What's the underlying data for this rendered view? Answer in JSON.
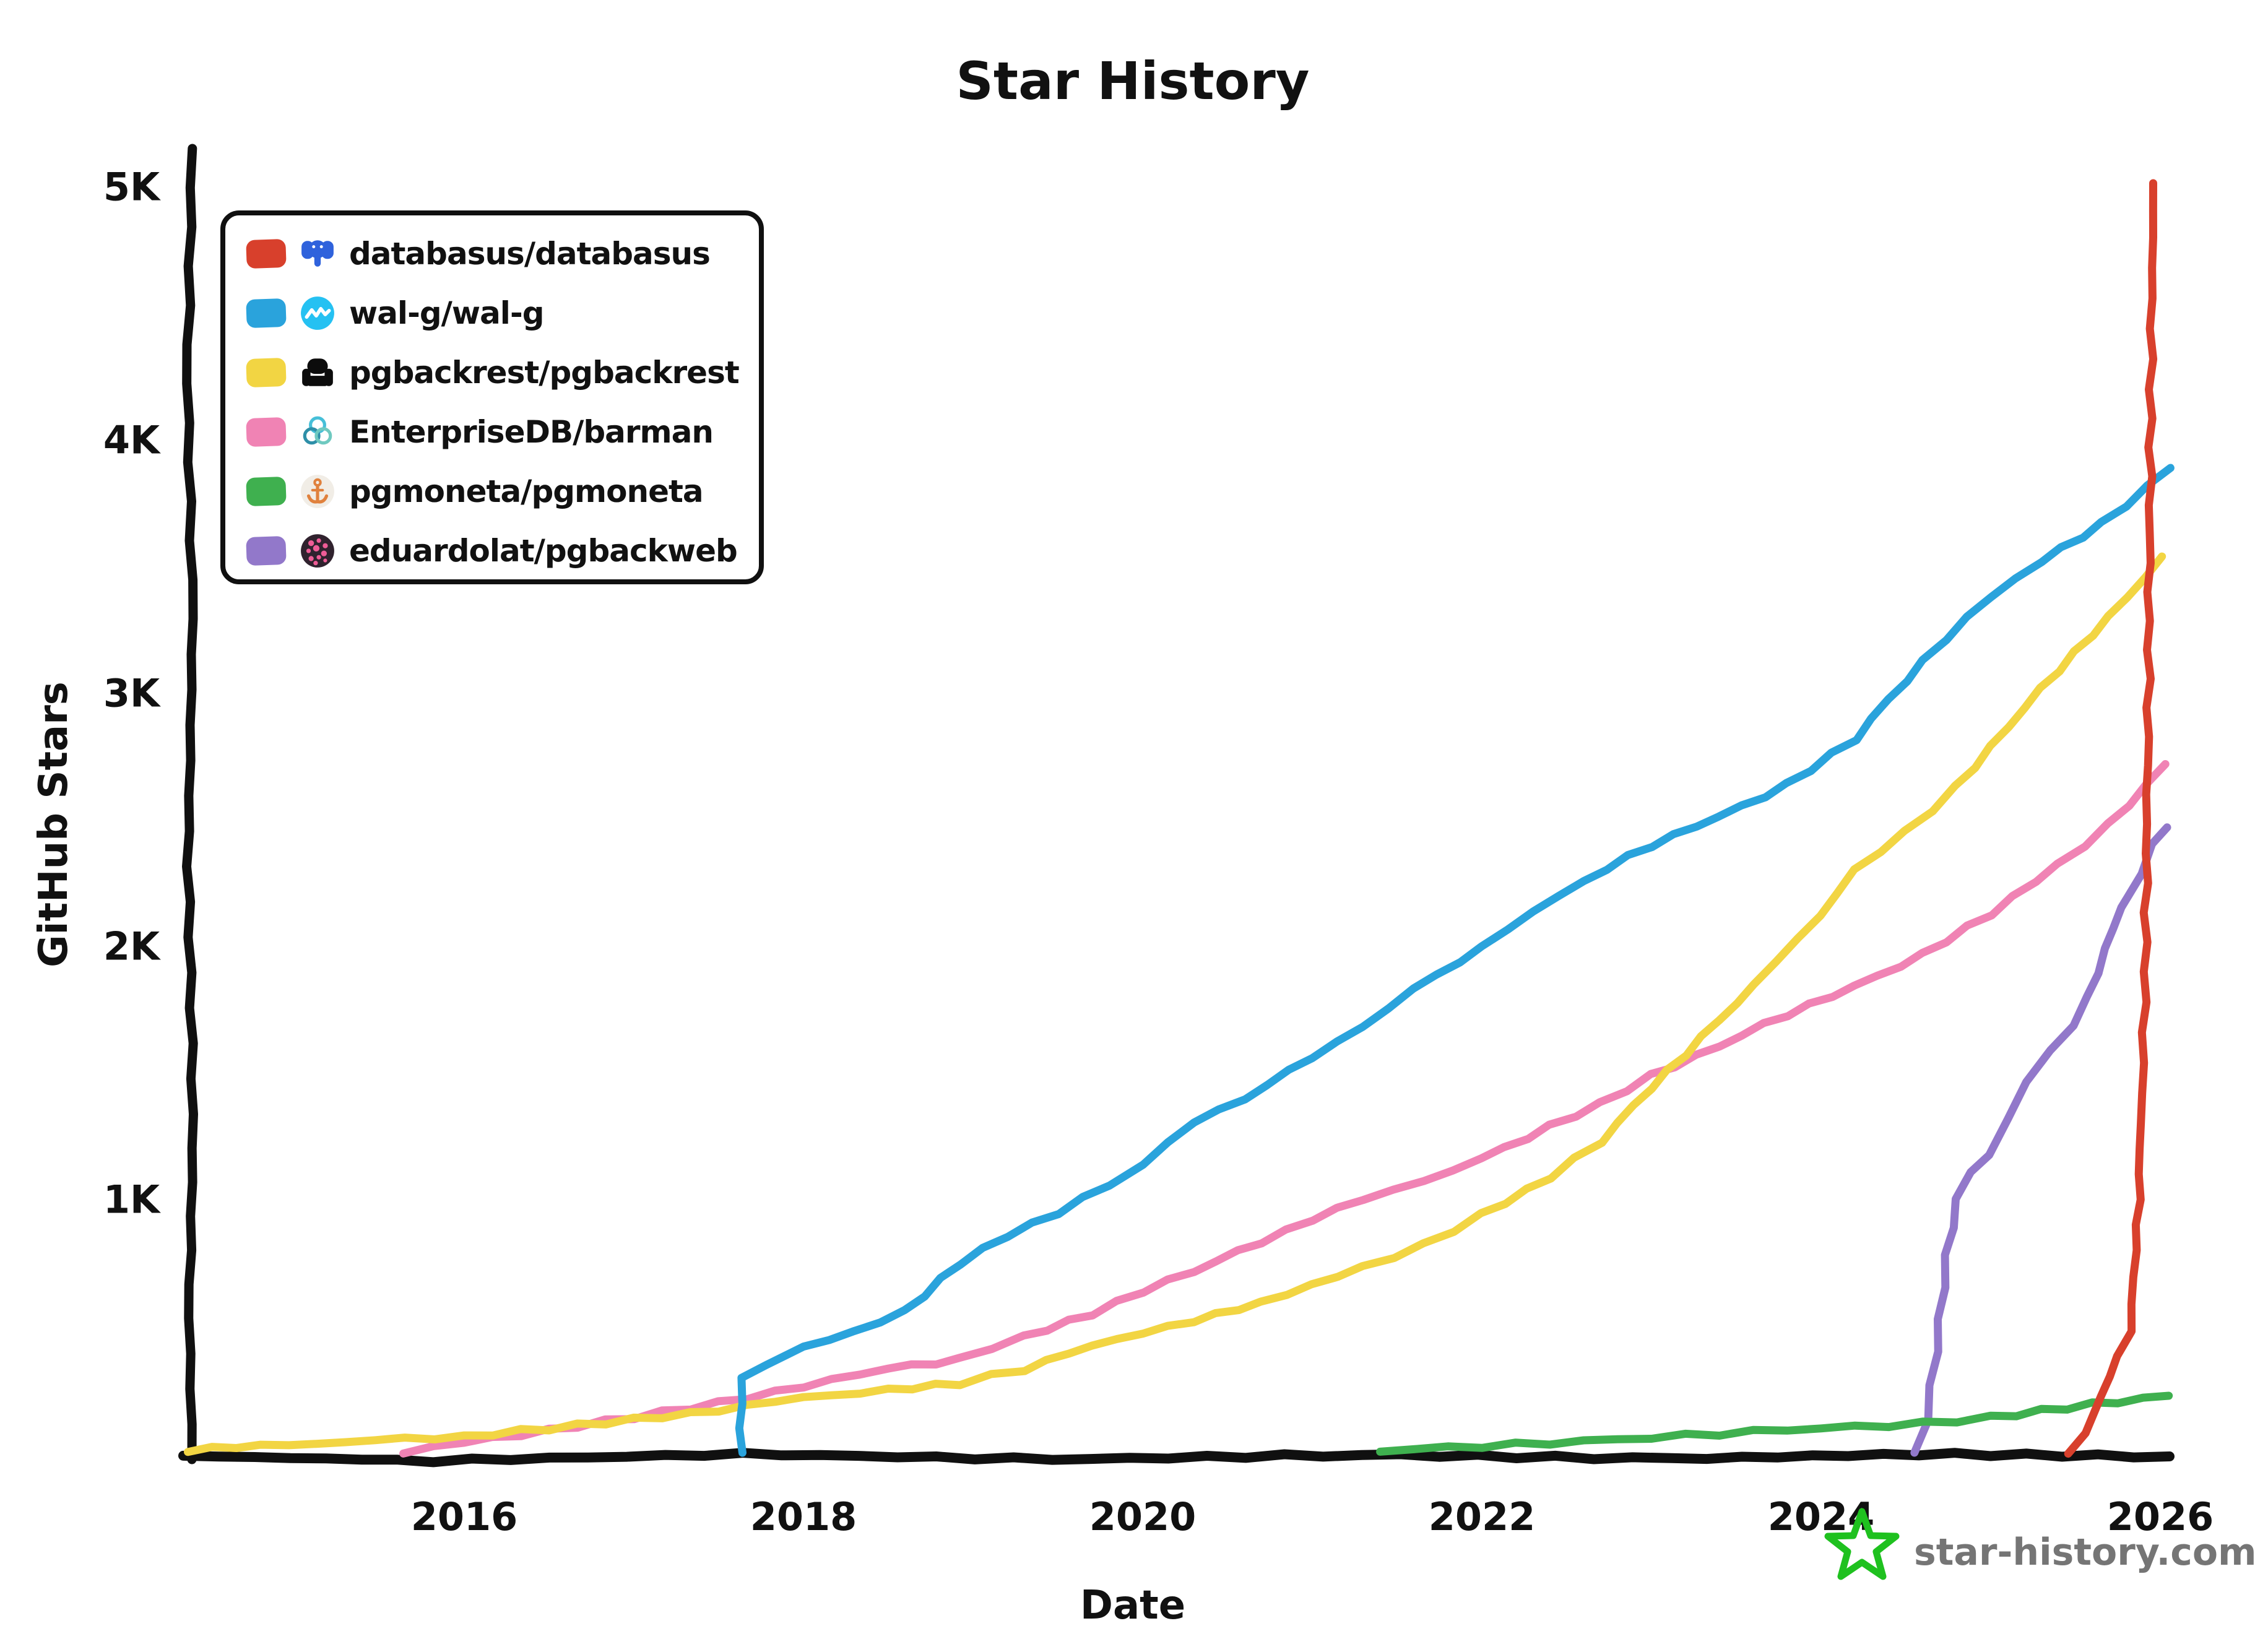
{
  "title": "Star History",
  "axis": {
    "x_label": "Date",
    "y_label": "GitHub Stars",
    "x_tick_labels": [
      "2016",
      "2018",
      "2020",
      "2022",
      "2024",
      "2026"
    ],
    "y_tick_labels": [
      "1K",
      "2K",
      "3K",
      "4K",
      "5K"
    ]
  },
  "watermark": {
    "label": "star-history.com",
    "star_color": "#1fc11f",
    "text_color": "#757575"
  },
  "legend": [
    {
      "label": "databasus/databasus",
      "color": "#D8402C",
      "icon": "postgres-elephant-icon"
    },
    {
      "label": "wal-g/wal-g",
      "color": "#2AA3DC",
      "icon": "wave-circle-icon"
    },
    {
      "label": "pgbackrest/pgbackrest",
      "color": "#F2D543",
      "icon": "armchair-icon"
    },
    {
      "label": "EnterpriseDB/barman",
      "color": "#F083B4",
      "icon": "rings-icon"
    },
    {
      "label": "pgmoneta/pgmoneta",
      "color": "#3FB04F",
      "icon": "anchor-icon"
    },
    {
      "label": "eduardolat/pgbackweb",
      "color": "#9278CA",
      "icon": "berry-icon"
    }
  ],
  "chart_data": {
    "type": "line",
    "title": "Star History",
    "xlabel": "Date",
    "ylabel": "GitHub Stars",
    "xlim": [
      2014.37,
      2026.1
    ],
    "ylim": [
      0,
      5000
    ],
    "x_ticks": [
      2016,
      2018,
      2020,
      2022,
      2024,
      2026
    ],
    "y_ticks": [
      1000,
      2000,
      3000,
      4000,
      5000
    ],
    "grid": false,
    "legend_position": "top-left",
    "style": "hand-drawn-xkcd",
    "series": [
      {
        "name": "databasus/databasus",
        "color": "#D8402C",
        "points": [
          [
            2025.45,
            0
          ],
          [
            2025.55,
            80
          ],
          [
            2025.66,
            220
          ],
          [
            2025.75,
            380
          ],
          [
            2025.82,
            480
          ],
          [
            2025.86,
            800
          ],
          [
            2025.89,
            1300
          ],
          [
            2025.91,
            1900
          ],
          [
            2025.925,
            2600
          ],
          [
            2025.935,
            3400
          ],
          [
            2025.945,
            4200
          ],
          [
            2025.952,
            4800
          ],
          [
            2025.958,
            5020
          ]
        ]
      },
      {
        "name": "wal-g/wal-g",
        "color": "#2AA3DC",
        "points": [
          [
            2017.63,
            0
          ],
          [
            2017.64,
            290
          ],
          [
            2017.78,
            350
          ],
          [
            2018.0,
            420
          ],
          [
            2018.3,
            480
          ],
          [
            2018.6,
            560
          ],
          [
            2018.92,
            750
          ],
          [
            2019.2,
            860
          ],
          [
            2019.5,
            950
          ],
          [
            2019.8,
            1060
          ],
          [
            2020.0,
            1140
          ],
          [
            2020.3,
            1310
          ],
          [
            2020.6,
            1400
          ],
          [
            2021.0,
            1560
          ],
          [
            2021.3,
            1680
          ],
          [
            2021.6,
            1830
          ],
          [
            2022.0,
            2000
          ],
          [
            2022.3,
            2140
          ],
          [
            2022.6,
            2260
          ],
          [
            2023.0,
            2400
          ],
          [
            2023.4,
            2510
          ],
          [
            2023.8,
            2640
          ],
          [
            2024.2,
            2820
          ],
          [
            2024.6,
            3130
          ],
          [
            2025.0,
            3380
          ],
          [
            2025.3,
            3520
          ],
          [
            2025.66,
            3670
          ],
          [
            2026.06,
            3890
          ]
        ]
      },
      {
        "name": "pgbackrest/pgbackrest",
        "color": "#F2D543",
        "points": [
          [
            2014.37,
            10
          ],
          [
            2014.8,
            25
          ],
          [
            2015.3,
            45
          ],
          [
            2016.0,
            65
          ],
          [
            2016.5,
            95
          ],
          [
            2017.0,
            130
          ],
          [
            2017.5,
            170
          ],
          [
            2018.0,
            215
          ],
          [
            2018.5,
            250
          ],
          [
            2018.92,
            275
          ],
          [
            2019.3,
            330
          ],
          [
            2019.7,
            420
          ],
          [
            2020.0,
            470
          ],
          [
            2020.3,
            520
          ],
          [
            2020.7,
            590
          ],
          [
            2021.0,
            660
          ],
          [
            2021.3,
            730
          ],
          [
            2021.66,
            820
          ],
          [
            2022.0,
            940
          ],
          [
            2022.4,
            1090
          ],
          [
            2022.7,
            1230
          ],
          [
            2023.0,
            1440
          ],
          [
            2023.3,
            1640
          ],
          [
            2023.6,
            1850
          ],
          [
            2024.0,
            2120
          ],
          [
            2024.2,
            2300
          ],
          [
            2024.5,
            2450
          ],
          [
            2024.8,
            2630
          ],
          [
            2025.1,
            2870
          ],
          [
            2025.4,
            3090
          ],
          [
            2025.7,
            3300
          ],
          [
            2026.01,
            3540
          ]
        ]
      },
      {
        "name": "EnterpriseDB/barman",
        "color": "#F083B4",
        "points": [
          [
            2015.64,
            0
          ],
          [
            2016.0,
            40
          ],
          [
            2016.5,
            90
          ],
          [
            2017.0,
            140
          ],
          [
            2017.5,
            195
          ],
          [
            2018.0,
            265
          ],
          [
            2018.5,
            330
          ],
          [
            2018.92,
            370
          ],
          [
            2019.3,
            460
          ],
          [
            2019.7,
            550
          ],
          [
            2020.0,
            640
          ],
          [
            2020.3,
            720
          ],
          [
            2020.7,
            830
          ],
          [
            2021.0,
            920
          ],
          [
            2021.3,
            1000
          ],
          [
            2021.66,
            1070
          ],
          [
            2022.0,
            1160
          ],
          [
            2022.4,
            1290
          ],
          [
            2022.7,
            1380
          ],
          [
            2023.0,
            1490
          ],
          [
            2023.4,
            1610
          ],
          [
            2023.8,
            1730
          ],
          [
            2024.2,
            1840
          ],
          [
            2024.6,
            1970
          ],
          [
            2025.0,
            2130
          ],
          [
            2025.4,
            2320
          ],
          [
            2025.7,
            2480
          ],
          [
            2026.03,
            2720
          ]
        ]
      },
      {
        "name": "pgmoneta/pgmoneta",
        "color": "#3FB04F",
        "points": [
          [
            2021.4,
            5
          ],
          [
            2021.8,
            18
          ],
          [
            2022.2,
            32
          ],
          [
            2022.6,
            48
          ],
          [
            2023.0,
            62
          ],
          [
            2023.4,
            75
          ],
          [
            2023.8,
            88
          ],
          [
            2024.2,
            100
          ],
          [
            2024.6,
            115
          ],
          [
            2025.0,
            140
          ],
          [
            2025.3,
            165
          ],
          [
            2025.6,
            190
          ],
          [
            2025.9,
            210
          ],
          [
            2026.05,
            225
          ]
        ]
      },
      {
        "name": "eduardolat/pgbackweb",
        "color": "#9278CA",
        "points": [
          [
            2024.55,
            0
          ],
          [
            2024.62,
            130
          ],
          [
            2024.68,
            400
          ],
          [
            2024.74,
            780
          ],
          [
            2024.8,
            1000
          ],
          [
            2024.88,
            1110
          ],
          [
            2024.98,
            1180
          ],
          [
            2025.1,
            1320
          ],
          [
            2025.22,
            1460
          ],
          [
            2025.35,
            1590
          ],
          [
            2025.48,
            1690
          ],
          [
            2025.58,
            1800
          ],
          [
            2025.68,
            1990
          ],
          [
            2025.78,
            2150
          ],
          [
            2025.88,
            2290
          ],
          [
            2025.96,
            2400
          ],
          [
            2026.04,
            2470
          ]
        ]
      }
    ]
  }
}
